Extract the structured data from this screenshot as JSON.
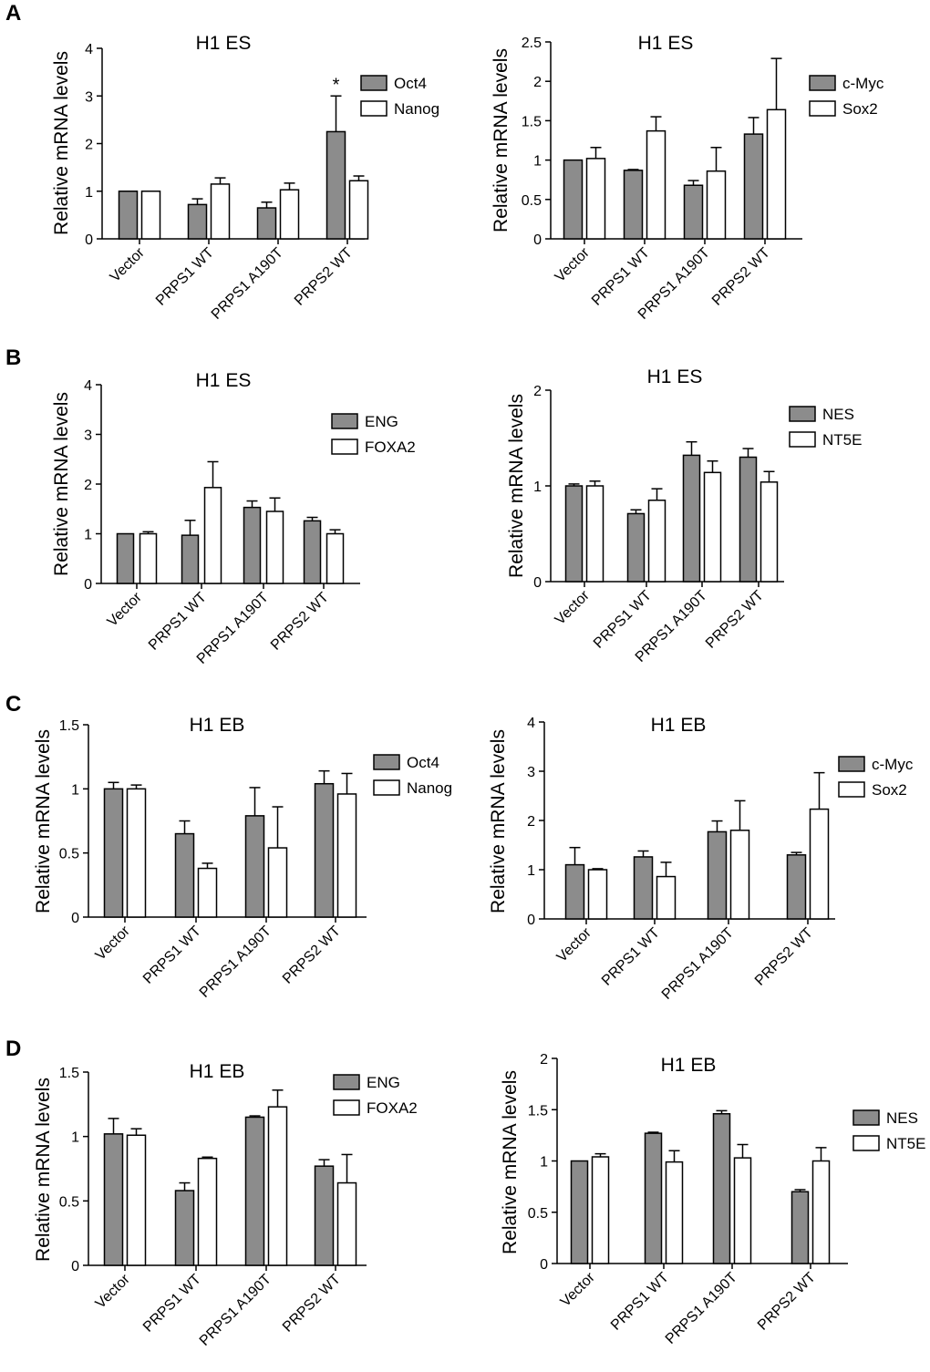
{
  "figure": {
    "panel_letters": [
      "A",
      "B",
      "C",
      "D"
    ]
  },
  "chart_data": [
    {
      "type": "bar",
      "panel": "A",
      "title": "H1 ES",
      "ylabel": "Relative mRNA levels",
      "xlabel": "",
      "categories": [
        "Vector",
        "PRPS1 WT",
        "PRPS1 A190T",
        "PRPS2 WT"
      ],
      "ylim": [
        0,
        4
      ],
      "yticks": [
        0,
        1,
        2,
        3,
        4
      ],
      "ytick_labels": [
        "0",
        "1",
        "2",
        "3",
        "4"
      ],
      "series": [
        {
          "name": "Oct4",
          "color": "#8c8c8c",
          "values": [
            1.0,
            0.72,
            0.65,
            2.25
          ],
          "errors": [
            0.0,
            0.12,
            0.12,
            0.75
          ]
        },
        {
          "name": "Nanog",
          "color": "#ffffff",
          "values": [
            1.0,
            1.15,
            1.03,
            1.22
          ],
          "errors": [
            0.0,
            0.13,
            0.14,
            0.1
          ]
        }
      ],
      "annotations": [
        {
          "category": "PRPS2 WT",
          "series": "Oct4",
          "text": "*"
        }
      ],
      "legend": "top-right"
    },
    {
      "type": "bar",
      "panel": "A",
      "title": "H1 ES",
      "ylabel": "Relative mRNA levels",
      "xlabel": "",
      "categories": [
        "Vector",
        "PRPS1 WT",
        "PRPS1 A190T",
        "PRPS2 WT"
      ],
      "ylim": [
        0,
        2.5
      ],
      "yticks": [
        0,
        0.5,
        1,
        1.5,
        2,
        2.5
      ],
      "ytick_labels": [
        "0",
        "0.5",
        "1",
        "1.5",
        "2",
        "2.5"
      ],
      "series": [
        {
          "name": "c-Myc",
          "color": "#8c8c8c",
          "values": [
            1.0,
            0.87,
            0.68,
            1.33
          ],
          "errors": [
            0.0,
            0.01,
            0.06,
            0.21
          ]
        },
        {
          "name": "Sox2",
          "color": "#ffffff",
          "values": [
            1.02,
            1.37,
            0.86,
            1.64
          ],
          "errors": [
            0.14,
            0.18,
            0.3,
            0.65
          ]
        }
      ],
      "annotations": [],
      "legend": "top-right"
    },
    {
      "type": "bar",
      "panel": "B",
      "title": "H1 ES",
      "ylabel": "Relative mRNA levels",
      "xlabel": "",
      "categories": [
        "Vector",
        "PRPS1 WT",
        "PRPS1 A190T",
        "PRPS2 WT"
      ],
      "ylim": [
        0,
        4
      ],
      "yticks": [
        0,
        1,
        2,
        3,
        4
      ],
      "ytick_labels": [
        "0",
        "1",
        "2",
        "3",
        "4"
      ],
      "series": [
        {
          "name": "ENG",
          "color": "#8c8c8c",
          "values": [
            1.0,
            0.97,
            1.53,
            1.26
          ],
          "errors": [
            0.0,
            0.3,
            0.13,
            0.07
          ]
        },
        {
          "name": "FOXA2",
          "color": "#ffffff",
          "values": [
            1.0,
            1.93,
            1.45,
            1.0
          ],
          "errors": [
            0.04,
            0.52,
            0.27,
            0.08
          ]
        }
      ],
      "annotations": [],
      "legend": "top-right"
    },
    {
      "type": "bar",
      "panel": "B",
      "title": "H1 ES",
      "ylabel": "Relative mRNA levels",
      "xlabel": "",
      "categories": [
        "Vector",
        "PRPS1 WT",
        "PRPS1 A190T",
        "PRPS2 WT"
      ],
      "ylim": [
        0,
        2
      ],
      "yticks": [
        0,
        1,
        2
      ],
      "ytick_labels": [
        "0",
        "1",
        "2"
      ],
      "series": [
        {
          "name": "NES",
          "color": "#8c8c8c",
          "values": [
            1.0,
            0.71,
            1.32,
            1.3
          ],
          "errors": [
            0.02,
            0.04,
            0.14,
            0.09
          ]
        },
        {
          "name": "NT5E",
          "color": "#ffffff",
          "values": [
            1.0,
            0.85,
            1.14,
            1.04
          ],
          "errors": [
            0.05,
            0.12,
            0.12,
            0.11
          ]
        }
      ],
      "annotations": [],
      "legend": "top-right"
    },
    {
      "type": "bar",
      "panel": "C",
      "title": "H1 EB",
      "ylabel": "Relative mRNA levels",
      "xlabel": "",
      "categories": [
        "Vector",
        "PRPS1 WT",
        "PRPS1 A190T",
        "PRPS2 WT"
      ],
      "ylim": [
        0,
        1.5
      ],
      "yticks": [
        0,
        0.5,
        1,
        1.5
      ],
      "ytick_labels": [
        "0",
        "0.5",
        "1",
        "1.5"
      ],
      "series": [
        {
          "name": "Oct4",
          "color": "#8c8c8c",
          "values": [
            1.0,
            0.65,
            0.79,
            1.04
          ],
          "errors": [
            0.05,
            0.1,
            0.22,
            0.1
          ]
        },
        {
          "name": "Nanog",
          "color": "#ffffff",
          "values": [
            1.0,
            0.38,
            0.54,
            0.96
          ],
          "errors": [
            0.03,
            0.04,
            0.32,
            0.16
          ]
        }
      ],
      "annotations": [],
      "legend": "top-right"
    },
    {
      "type": "bar",
      "panel": "C",
      "title": "H1 EB",
      "ylabel": "Relative mRNA levels",
      "xlabel": "",
      "categories": [
        "Vector",
        "PRPS1 WT",
        "PRPS1 A190T",
        "PRPS2 WT"
      ],
      "ylim": [
        0,
        4
      ],
      "yticks": [
        0,
        1,
        2,
        3,
        4
      ],
      "ytick_labels": [
        "0",
        "1",
        "2",
        "3",
        "4"
      ],
      "series": [
        {
          "name": "c-Myc",
          "color": "#8c8c8c",
          "values": [
            1.1,
            1.26,
            1.77,
            1.3
          ],
          "errors": [
            0.35,
            0.12,
            0.22,
            0.05
          ]
        },
        {
          "name": "Sox2",
          "color": "#ffffff",
          "values": [
            1.0,
            0.86,
            1.8,
            2.23
          ],
          "errors": [
            0.02,
            0.29,
            0.6,
            0.74
          ]
        }
      ],
      "annotations": [],
      "legend": "top-right"
    },
    {
      "type": "bar",
      "panel": "D",
      "title": "H1 EB",
      "ylabel": "Relative mRNA levels",
      "xlabel": "",
      "categories": [
        "Vector",
        "PRPS1 WT",
        "PRPS1 A190T",
        "PRPS2 WT"
      ],
      "ylim": [
        0,
        1.5
      ],
      "yticks": [
        0,
        0.5,
        1,
        1.5
      ],
      "ytick_labels": [
        "0",
        "0.5",
        "1",
        "1.5"
      ],
      "series": [
        {
          "name": "ENG",
          "color": "#8c8c8c",
          "values": [
            1.02,
            0.58,
            1.15,
            0.77
          ],
          "errors": [
            0.12,
            0.06,
            0.01,
            0.05
          ]
        },
        {
          "name": "FOXA2",
          "color": "#ffffff",
          "values": [
            1.01,
            0.83,
            1.23,
            0.64
          ],
          "errors": [
            0.05,
            0.01,
            0.13,
            0.22
          ]
        }
      ],
      "annotations": [],
      "legend": "top-right"
    },
    {
      "type": "bar",
      "panel": "D",
      "title": "H1 EB",
      "ylabel": "Relative mRNA levels",
      "xlabel": "",
      "categories": [
        "Vector",
        "PRPS1 WT",
        "PRPS1 A190T",
        "PRPS2 WT"
      ],
      "ylim": [
        0,
        2
      ],
      "yticks": [
        0,
        0.5,
        1,
        1.5,
        2
      ],
      "ytick_labels": [
        "0",
        "0.5",
        "1",
        "1.5",
        "2"
      ],
      "series": [
        {
          "name": "NES",
          "color": "#8c8c8c",
          "values": [
            1.0,
            1.27,
            1.46,
            0.7
          ],
          "errors": [
            0.0,
            0.01,
            0.03,
            0.02
          ]
        },
        {
          "name": "NT5E",
          "color": "#ffffff",
          "values": [
            1.04,
            0.99,
            1.03,
            1.0
          ],
          "errors": [
            0.03,
            0.11,
            0.13,
            0.13
          ]
        }
      ],
      "annotations": [],
      "legend": "top-right"
    }
  ]
}
